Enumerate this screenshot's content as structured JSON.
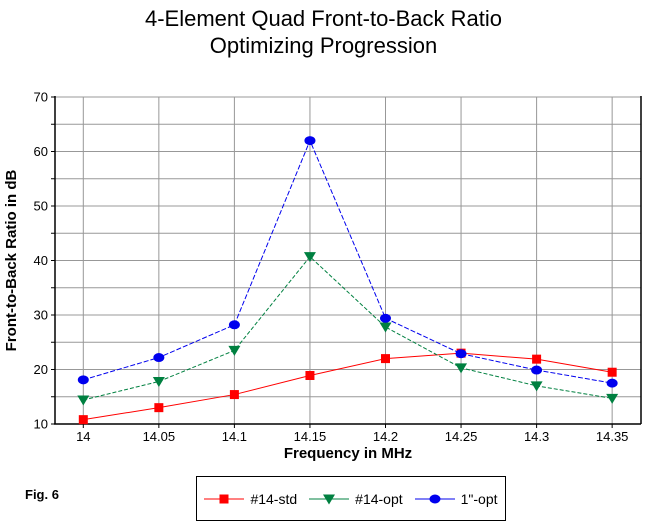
{
  "title_line1": "4-Element Quad Front-to-Back Ratio",
  "title_line2": "Optimizing Progression",
  "figure_label": "Fig. 6",
  "colors": {
    "background": "#ffffff",
    "gridline": "#989898",
    "axis": "#000000",
    "text": "#000000"
  },
  "chart_data": {
    "type": "line",
    "title": "4-Element Quad Front-to-Back Ratio Optimizing Progression",
    "xlabel": "Frequency in MHz",
    "ylabel": "Front-to-Back Ratio in dB",
    "grid": true,
    "legend_position": "bottom",
    "x": [
      14,
      14.05,
      14.1,
      14.15,
      14.2,
      14.25,
      14.3,
      14.35
    ],
    "x_tick_labels": [
      "14",
      "14.05",
      "14.1",
      "14.15",
      "14.2",
      "14.25",
      "14.3",
      "14.35"
    ],
    "ylim": [
      10,
      70
    ],
    "y_tick_labels": [
      "10",
      "20",
      "30",
      "40",
      "50",
      "60",
      "70"
    ],
    "y_major_step": 10,
    "y_minor_step": 5,
    "series": [
      {
        "name": "#14-std",
        "color": "#ff0000",
        "marker": "square",
        "dash": "none",
        "values": [
          10.8,
          13.0,
          15.4,
          18.9,
          22.0,
          23.0,
          21.9,
          19.5
        ]
      },
      {
        "name": "#14-opt",
        "color": "#008040",
        "marker": "triangle-down",
        "dash": "4 2",
        "values": [
          14.4,
          17.8,
          23.5,
          40.7,
          27.8,
          20.3,
          17.0,
          14.7
        ]
      },
      {
        "name": "1\"-opt",
        "color": "#0000ee",
        "marker": "ellipse",
        "dash": "5 2",
        "values": [
          18.1,
          22.2,
          28.2,
          62.0,
          29.4,
          22.9,
          19.9,
          17.5
        ]
      }
    ]
  }
}
